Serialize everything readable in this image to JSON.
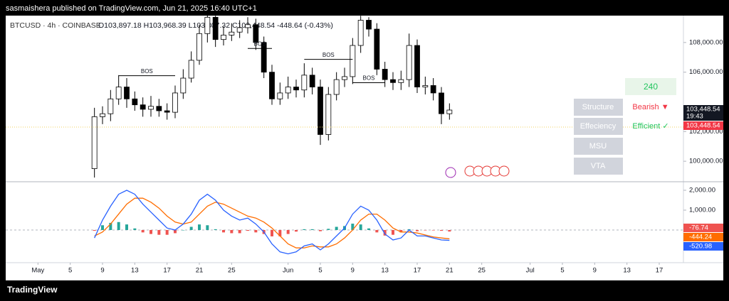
{
  "header": {
    "publisher": "sasmaishera published on TradingView.com, Jun 21, 2025 16:40 UTC+1",
    "symbol": "BTCUSD · 4h · COINBASE",
    "quote": "O103,897.18 H103,968.39 L103,307.32 C103,448.54 -448.64 (-0.43%)"
  },
  "chart_data": [
    {
      "type": "candlestick",
      "x": [
        "2025-05-08",
        "2025-05-09",
        "2025-05-10",
        "2025-05-11",
        "2025-05-12",
        "2025-05-13",
        "2025-05-14",
        "2025-05-15",
        "2025-05-16",
        "2025-05-17",
        "2025-05-18",
        "2025-05-19",
        "2025-05-20",
        "2025-05-21",
        "2025-05-22",
        "2025-05-23",
        "2025-05-24",
        "2025-05-25",
        "2025-05-26",
        "2025-05-27",
        "2025-05-28",
        "2025-05-29",
        "2025-05-30",
        "2025-05-31",
        "2025-06-01",
        "2025-06-02",
        "2025-06-03",
        "2025-06-04",
        "2025-06-05",
        "2025-06-06",
        "2025-06-07",
        "2025-06-08",
        "2025-06-09",
        "2025-06-10",
        "2025-06-11",
        "2025-06-12",
        "2025-06-13",
        "2025-06-14",
        "2025-06-15",
        "2025-06-16",
        "2025-06-17",
        "2025-06-18",
        "2025-06-19",
        "2025-06-20",
        "2025-06-21"
      ],
      "open": [
        99500,
        103000,
        103200,
        104200,
        105000,
        104200,
        103800,
        103500,
        103700,
        103400,
        103300,
        104600,
        105600,
        106800,
        108600,
        109700,
        108200,
        108500,
        108700,
        109000,
        109200,
        108000,
        106000,
        104200,
        104600,
        105000,
        104800,
        105800,
        105000,
        101800,
        104500,
        105500,
        105700,
        107800,
        109500,
        108900,
        106200,
        105500,
        105300,
        105500,
        107800,
        105000,
        105100,
        104600,
        103200
      ],
      "high": [
        103600,
        103700,
        104800,
        105800,
        105600,
        104700,
        104300,
        104400,
        104200,
        103900,
        105100,
        106200,
        107400,
        109200,
        109900,
        109800,
        109100,
        109300,
        109500,
        109700,
        109600,
        108400,
        106500,
        105300,
        105700,
        105500,
        106600,
        106300,
        105500,
        105000,
        106000,
        106300,
        108300,
        109800,
        109700,
        109300,
        106700,
        106000,
        106100,
        108600,
        108200,
        105700,
        105600,
        105000,
        103900
      ],
      "low": [
        98900,
        102500,
        102700,
        103800,
        103600,
        103400,
        103000,
        103000,
        103000,
        102800,
        102900,
        104200,
        105300,
        106500,
        108000,
        107700,
        107800,
        108100,
        108300,
        108600,
        107500,
        105600,
        103800,
        103800,
        104200,
        104300,
        104300,
        104500,
        101100,
        101400,
        104100,
        105000,
        105200,
        107300,
        108400,
        105800,
        105000,
        104800,
        104800,
        105000,
        104600,
        104500,
        104100,
        102500,
        102800
      ],
      "close": [
        103000,
        103200,
        104200,
        105000,
        104200,
        103800,
        103500,
        103700,
        103400,
        103300,
        104600,
        105600,
        106800,
        108600,
        109700,
        108200,
        108500,
        108700,
        109000,
        109200,
        108000,
        106000,
        104200,
        104600,
        105000,
        104800,
        105800,
        105000,
        101800,
        104500,
        105500,
        105700,
        107800,
        109500,
        108900,
        106200,
        105500,
        105300,
        105500,
        107800,
        105000,
        105100,
        104600,
        103200,
        103448.54
      ],
      "up_color": "#ffffff",
      "down_color": "#000000",
      "xlim": [
        "2025-04-27",
        "2025-07-20"
      ],
      "ylim": [
        98667,
        109810
      ],
      "yticks": [
        {
          "value": 100000,
          "label": "100,000.00"
        },
        {
          "value": 102000,
          "label": "102,000.00"
        },
        {
          "value": 106000,
          "label": "106,000.00"
        },
        {
          "value": 108000,
          "label": "108,000.00"
        }
      ],
      "last_price": {
        "value": 103448.54,
        "label": "103,448.54"
      },
      "last_time": "19:43",
      "annotations": [
        {
          "text": "BOS",
          "y": 105762,
          "x": [
            "2025-05-11",
            "2025-05-18"
          ]
        },
        {
          "text": "BOS",
          "y": 107600,
          "x": [
            "2025-05-27",
            "2025-05-30"
          ]
        },
        {
          "text": "BOS",
          "y": 106860,
          "x": [
            "2025-06-03",
            "2025-06-09"
          ]
        },
        {
          "text": "BOS",
          "y": 105290,
          "x": [
            "2025-06-09",
            "2025-06-13"
          ]
        }
      ],
      "grid": false
    },
    {
      "type": "macd",
      "x": [
        "2025-05-08",
        "2025-05-09",
        "2025-05-10",
        "2025-05-11",
        "2025-05-12",
        "2025-05-13",
        "2025-05-14",
        "2025-05-15",
        "2025-05-16",
        "2025-05-17",
        "2025-05-18",
        "2025-05-19",
        "2025-05-20",
        "2025-05-21",
        "2025-05-22",
        "2025-05-23",
        "2025-05-24",
        "2025-05-25",
        "2025-05-26",
        "2025-05-27",
        "2025-05-28",
        "2025-05-29",
        "2025-05-30",
        "2025-05-31",
        "2025-06-01",
        "2025-06-02",
        "2025-06-03",
        "2025-06-04",
        "2025-06-05",
        "2025-06-06",
        "2025-06-07",
        "2025-06-08",
        "2025-06-09",
        "2025-06-10",
        "2025-06-11",
        "2025-06-12",
        "2025-06-13",
        "2025-06-14",
        "2025-06-15",
        "2025-06-16",
        "2025-06-17",
        "2025-06-18",
        "2025-06-19",
        "2025-06-20",
        "2025-06-21"
      ],
      "histogram": {
        "positive_color": "#26a69a",
        "negative_color": "#ef5350",
        "values": [
          -40,
          240,
          360,
          400,
          280,
          80,
          -120,
          -200,
          -240,
          -240,
          -160,
          0,
          160,
          280,
          240,
          40,
          -120,
          -160,
          -160,
          -40,
          -120,
          -200,
          -320,
          -320,
          -200,
          -80,
          40,
          40,
          -60,
          60,
          160,
          200,
          320,
          280,
          80,
          -120,
          -280,
          -240,
          -120,
          40,
          -60,
          -20,
          -20,
          -40,
          -76.74
        ]
      },
      "macd": {
        "color": "#2962ff",
        "values": [
          -400,
          500,
          1200,
          1800,
          2000,
          1800,
          1300,
          900,
          500,
          100,
          0,
          300,
          800,
          1500,
          1800,
          1500,
          1000,
          700,
          500,
          600,
          300,
          -100,
          -700,
          -1100,
          -1200,
          -1100,
          -800,
          -700,
          -1000,
          -700,
          -300,
          100,
          800,
          1200,
          1000,
          500,
          -200,
          -500,
          -400,
          0,
          -300,
          -300,
          -400,
          -500,
          -520.98
        ]
      },
      "signal": {
        "color": "#ff6d00",
        "values": [
          -300,
          -100,
          300,
          800,
          1300,
          1600,
          1600,
          1400,
          1100,
          700,
          400,
          300,
          400,
          800,
          1200,
          1400,
          1300,
          1100,
          900,
          700,
          600,
          400,
          100,
          -300,
          -700,
          -900,
          -900,
          -800,
          -850,
          -850,
          -700,
          -400,
          0,
          500,
          800,
          800,
          500,
          100,
          -100,
          -100,
          -150,
          -250,
          -350,
          -400,
          -444.24
        ]
      },
      "xlim": [
        "2025-04-27",
        "2025-07-20"
      ],
      "ylim": [
        -1643,
        2357
      ],
      "yticks": [
        {
          "value": 1000,
          "label": "1,000.00"
        },
        {
          "value": 2000,
          "label": "2,000.00"
        }
      ],
      "xticks": [
        {
          "value": "2025-05-01",
          "label": "May"
        },
        {
          "value": "2025-05-05",
          "label": "5"
        },
        {
          "value": "2025-05-09",
          "label": "9"
        },
        {
          "value": "2025-05-13",
          "label": "13"
        },
        {
          "value": "2025-05-17",
          "label": "17"
        },
        {
          "value": "2025-05-21",
          "label": "21"
        },
        {
          "value": "2025-05-25",
          "label": "25"
        },
        {
          "value": "2025-06-01",
          "label": "Jun"
        },
        {
          "value": "2025-06-05",
          "label": "5"
        },
        {
          "value": "2025-06-09",
          "label": "9"
        },
        {
          "value": "2025-06-13",
          "label": "13"
        },
        {
          "value": "2025-06-17",
          "label": "17"
        },
        {
          "value": "2025-06-21",
          "label": "21"
        },
        {
          "value": "2025-06-25",
          "label": "25"
        },
        {
          "value": "2025-07-01",
          "label": "Jul"
        },
        {
          "value": "2025-07-05",
          "label": "5"
        },
        {
          "value": "2025-07-09",
          "label": "9"
        },
        {
          "value": "2025-07-13",
          "label": "13"
        },
        {
          "value": "2025-07-17",
          "label": "17"
        }
      ],
      "grid": false
    }
  ],
  "table": {
    "timeframe": "240",
    "rows": [
      {
        "label": "Structure",
        "value": "Bearish ▼",
        "color": "#f23645"
      },
      {
        "label": "Effeciency",
        "value": "Efficient ✓",
        "color": "#22c55e"
      },
      {
        "label": "MSU"
      },
      {
        "label": "VTA"
      }
    ]
  },
  "footer": {
    "logo": "TradingView"
  }
}
